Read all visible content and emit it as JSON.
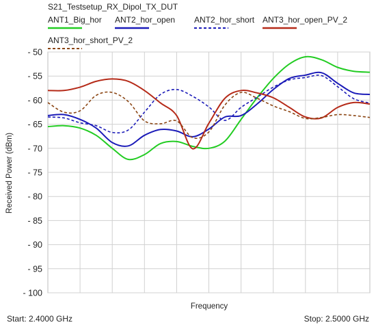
{
  "chart_data": {
    "type": "line",
    "title": "S21_Testsetup_RX_Dipol_TX_DUT",
    "xlabel": "Frequency",
    "ylabel": "Received Power (dBm)",
    "x_start_label": "Start: 2.4000 GHz",
    "x_stop_label": "Stop: 2.5000 GHz",
    "xlim": [
      2.4,
      2.5
    ],
    "ylim": [
      -100,
      -50
    ],
    "yticks": [
      -50,
      -55,
      -60,
      -65,
      -70,
      -75,
      -80,
      -85,
      -90,
      -95,
      -100
    ],
    "ytick_labels": [
      "- 50",
      "- 55",
      "- 60",
      "- 65",
      "- 70",
      "- 75",
      "- 80",
      "- 85",
      "- 90",
      "- 95",
      "- 100"
    ],
    "grid": true,
    "legend": "top",
    "series": [
      {
        "name": "ANT1_Big_hor",
        "color": "#22cc22",
        "dash": "solid",
        "x": [
          2.4,
          2.405,
          2.41,
          2.415,
          2.42,
          2.425,
          2.43,
          2.435,
          2.44,
          2.445,
          2.45,
          2.455,
          2.46,
          2.465,
          2.47,
          2.475,
          2.48,
          2.485,
          2.49,
          2.495,
          2.5
        ],
        "y": [
          -65.5,
          -65.3,
          -65.8,
          -67.3,
          -70,
          -72.3,
          -71.3,
          -69,
          -68.6,
          -69.6,
          -70,
          -68.5,
          -64,
          -59.5,
          -55.5,
          -52.5,
          -51,
          -51.6,
          -53.2,
          -54,
          -54.2
        ]
      },
      {
        "name": "ANT2_hor_open",
        "color": "#1a1ab8",
        "dash": "solid",
        "x": [
          2.4,
          2.405,
          2.41,
          2.415,
          2.42,
          2.425,
          2.43,
          2.435,
          2.44,
          2.445,
          2.45,
          2.455,
          2.46,
          2.465,
          2.47,
          2.475,
          2.48,
          2.485,
          2.49,
          2.495,
          2.5
        ],
        "y": [
          -63.2,
          -63,
          -64,
          -65.8,
          -68.8,
          -69.5,
          -67.3,
          -66.1,
          -66.4,
          -67.6,
          -66,
          -63.5,
          -63.2,
          -60.8,
          -57.8,
          -55.5,
          -54.8,
          -54.3,
          -56.5,
          -58.5,
          -58.8
        ]
      },
      {
        "name": "ANT2_hor_short",
        "color": "#1a1ab8",
        "dash": "dashed",
        "x": [
          2.4,
          2.405,
          2.41,
          2.415,
          2.42,
          2.425,
          2.43,
          2.435,
          2.44,
          2.445,
          2.45,
          2.455,
          2.46,
          2.465,
          2.47,
          2.475,
          2.48,
          2.485,
          2.49,
          2.495,
          2.5
        ],
        "y": [
          -63.5,
          -63.7,
          -64.7,
          -65.3,
          -66.7,
          -66.2,
          -62.5,
          -58.8,
          -57.8,
          -59.2,
          -61.4,
          -64.2,
          -61.5,
          -59.4,
          -57.3,
          -55.8,
          -55.3,
          -54.9,
          -57.2,
          -59.7,
          -60.6
        ]
      },
      {
        "name": "ANT3_hor_open_PV_2",
        "color": "#b52a18",
        "dash": "solid",
        "x": [
          2.4,
          2.405,
          2.41,
          2.415,
          2.42,
          2.425,
          2.43,
          2.435,
          2.44,
          2.445,
          2.45,
          2.455,
          2.46,
          2.465,
          2.47,
          2.475,
          2.48,
          2.485,
          2.49,
          2.495,
          2.5
        ],
        "y": [
          -58,
          -58,
          -57.3,
          -56.1,
          -55.6,
          -56.1,
          -58,
          -60.6,
          -63.2,
          -70.1,
          -64.8,
          -59.6,
          -58,
          -58.5,
          -59.5,
          -61.5,
          -63.5,
          -63.7,
          -61.5,
          -60.5,
          -60.8
        ]
      },
      {
        "name": "ANT3_hor_short_PV_2",
        "color": "#8b4513",
        "dash": "dashed",
        "x": [
          2.4,
          2.405,
          2.41,
          2.415,
          2.42,
          2.425,
          2.43,
          2.435,
          2.44,
          2.445,
          2.45,
          2.455,
          2.46,
          2.465,
          2.47,
          2.475,
          2.48,
          2.485,
          2.49,
          2.495,
          2.5
        ],
        "y": [
          -60.5,
          -62.5,
          -62.2,
          -59,
          -58.4,
          -60.3,
          -64.3,
          -64.9,
          -64.3,
          -67.8,
          -66.6,
          -61,
          -58.4,
          -59.6,
          -61.2,
          -62.4,
          -63.8,
          -63.6,
          -63,
          -63.2,
          -63.6
        ]
      }
    ]
  }
}
